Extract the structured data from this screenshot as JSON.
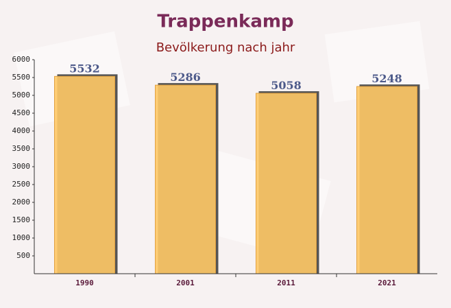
{
  "chart_data": {
    "type": "bar",
    "title": "Trappenkamp",
    "subtitle": "Bevölkerung nach jahr",
    "categories": [
      "1990",
      "2001",
      "2011",
      "2021"
    ],
    "values": [
      5532,
      5286,
      5058,
      5248
    ],
    "color": "#ffc966",
    "ylim": [
      0,
      6000
    ],
    "yticks": [
      500,
      1000,
      1500,
      2000,
      2500,
      3000,
      3500,
      4000,
      4500,
      5000,
      5500,
      6000
    ]
  }
}
